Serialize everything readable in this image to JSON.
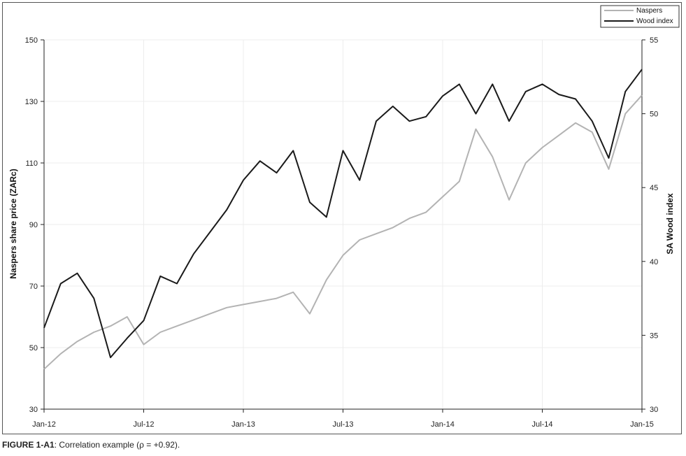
{
  "chart_data": {
    "type": "line",
    "title": "",
    "xlabel": "",
    "ylabel": "Naspers share price (ZARc)",
    "y2label": "SA Wood index",
    "x_tick_labels": [
      "Jan-12",
      "Jul-12",
      "Jan-13",
      "Jul-13",
      "Jan-14",
      "Jul-14",
      "Jan-15"
    ],
    "ylim": [
      30,
      150
    ],
    "y_ticks": [
      30,
      50,
      70,
      90,
      110,
      130,
      150
    ],
    "y2lim": [
      30,
      55
    ],
    "y2_ticks": [
      30,
      35,
      40,
      45,
      50,
      55
    ],
    "grid": true,
    "legend_position": "top-right",
    "series": [
      {
        "name": "Naspers",
        "axis": "left",
        "color": "#b3b3b3",
        "x": [
          "Jan-12",
          "Feb-12",
          "Mar-12",
          "Apr-12",
          "May-12",
          "Jun-12",
          "Jul-12",
          "Aug-12",
          "Sep-12",
          "Oct-12",
          "Nov-12",
          "Dec-12",
          "Jan-13",
          "Feb-13",
          "Mar-13",
          "Apr-13",
          "May-13",
          "Jun-13",
          "Jul-13",
          "Aug-13",
          "Sep-13",
          "Oct-13",
          "Nov-13",
          "Dec-13",
          "Jan-14",
          "Feb-14",
          "Mar-14",
          "Apr-14",
          "May-14",
          "Jun-14",
          "Jul-14",
          "Aug-14",
          "Sep-14",
          "Oct-14",
          "Nov-14",
          "Dec-14",
          "Jan-15"
        ],
        "values": [
          43,
          48,
          52,
          55,
          57,
          60,
          51,
          55,
          57,
          59,
          61,
          63,
          64,
          65,
          66,
          68,
          61,
          72,
          80,
          85,
          87,
          89,
          92,
          94,
          99,
          104,
          121,
          112,
          98,
          110,
          115,
          119,
          123,
          120,
          108,
          126,
          132
        ]
      },
      {
        "name": "Wood index",
        "axis": "right",
        "color": "#1a1a1a",
        "x": [
          "Jan-12",
          "Feb-12",
          "Mar-12",
          "Apr-12",
          "May-12",
          "Jun-12",
          "Jul-12",
          "Aug-12",
          "Sep-12",
          "Oct-12",
          "Nov-12",
          "Dec-12",
          "Jan-13",
          "Feb-13",
          "Mar-13",
          "Apr-13",
          "May-13",
          "Jun-13",
          "Jul-13",
          "Aug-13",
          "Sep-13",
          "Oct-13",
          "Nov-13",
          "Dec-13",
          "Jan-14",
          "Feb-14",
          "Mar-14",
          "Apr-14",
          "May-14",
          "Jun-14",
          "Jul-14",
          "Aug-14",
          "Sep-14",
          "Oct-14",
          "Nov-14",
          "Dec-14",
          "Jan-15"
        ],
        "values": [
          35.5,
          38.5,
          39.2,
          37.5,
          33.5,
          34.8,
          36.0,
          39.0,
          38.5,
          40.5,
          42.0,
          43.5,
          45.5,
          46.8,
          46.0,
          47.5,
          44.0,
          43.0,
          47.5,
          45.5,
          49.5,
          50.5,
          49.5,
          49.8,
          51.2,
          52.0,
          50.0,
          52.0,
          49.5,
          51.5,
          52.0,
          51.3,
          51.0,
          49.5,
          47.0,
          51.5,
          53.0
        ]
      }
    ]
  },
  "caption": {
    "label": "FIGURE 1-A1",
    "text": ": Correlation example (ρ = +0.92)."
  }
}
